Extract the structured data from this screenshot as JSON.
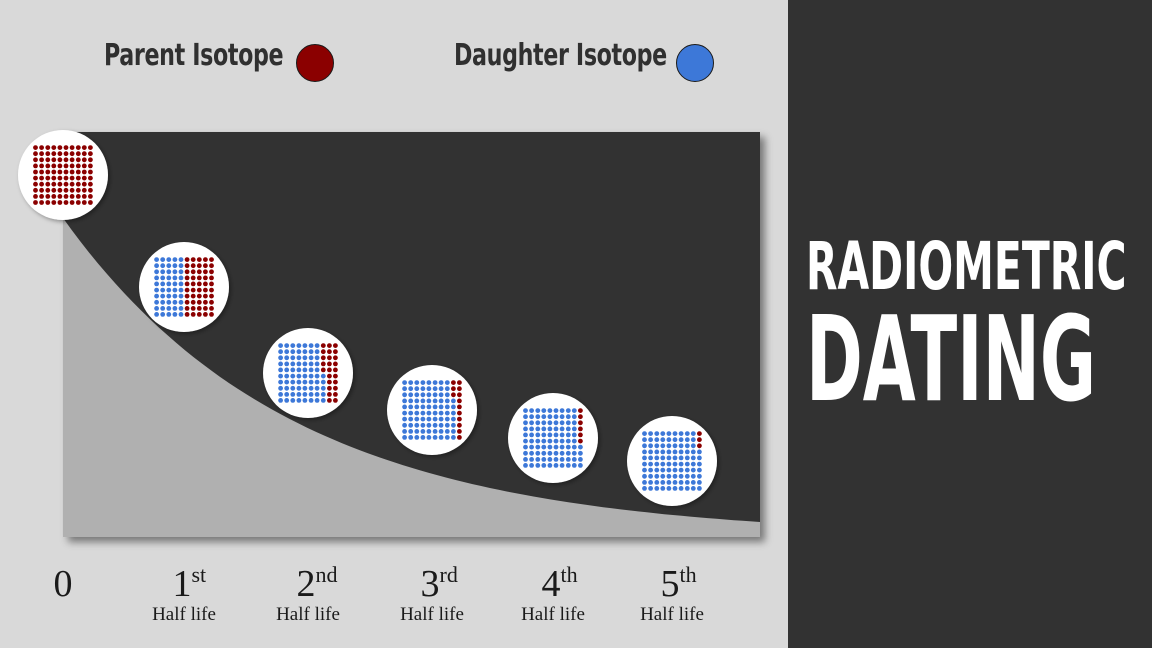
{
  "legend": {
    "parent_label": "Parent Isotope",
    "daughter_label": "Daughter Isotope"
  },
  "title": {
    "line1": "RADIOMETRIC",
    "line2": "DATING"
  },
  "colors": {
    "parent": "#8b0000",
    "daughter": "#3d78d8",
    "panel": "#333333",
    "area": "#b0b0b0",
    "right_bg": "#323232"
  },
  "x_labels": [
    {
      "num": "0",
      "sup": "",
      "sub": ""
    },
    {
      "num": "1",
      "sup": "st",
      "sub": "Half life"
    },
    {
      "num": "2",
      "sup": "nd",
      "sub": "Half life"
    },
    {
      "num": "3",
      "sup": "rd",
      "sub": "Half life"
    },
    {
      "num": "4",
      "sup": "th",
      "sub": "Half life"
    },
    {
      "num": "5",
      "sup": "th",
      "sub": "Half life"
    }
  ],
  "chart_data": {
    "type": "area",
    "title": "",
    "xlabel": "",
    "ylabel": "",
    "x": [
      0,
      1,
      2,
      3,
      4,
      5
    ],
    "series": [
      {
        "name": "Parent Isotope",
        "values": [
          100,
          50,
          25,
          12.5,
          6.25,
          3.125
        ]
      },
      {
        "name": "Daughter Isotope",
        "values": [
          0,
          50,
          75,
          87.5,
          93.75,
          96.875
        ]
      }
    ],
    "legend_position": "top"
  }
}
